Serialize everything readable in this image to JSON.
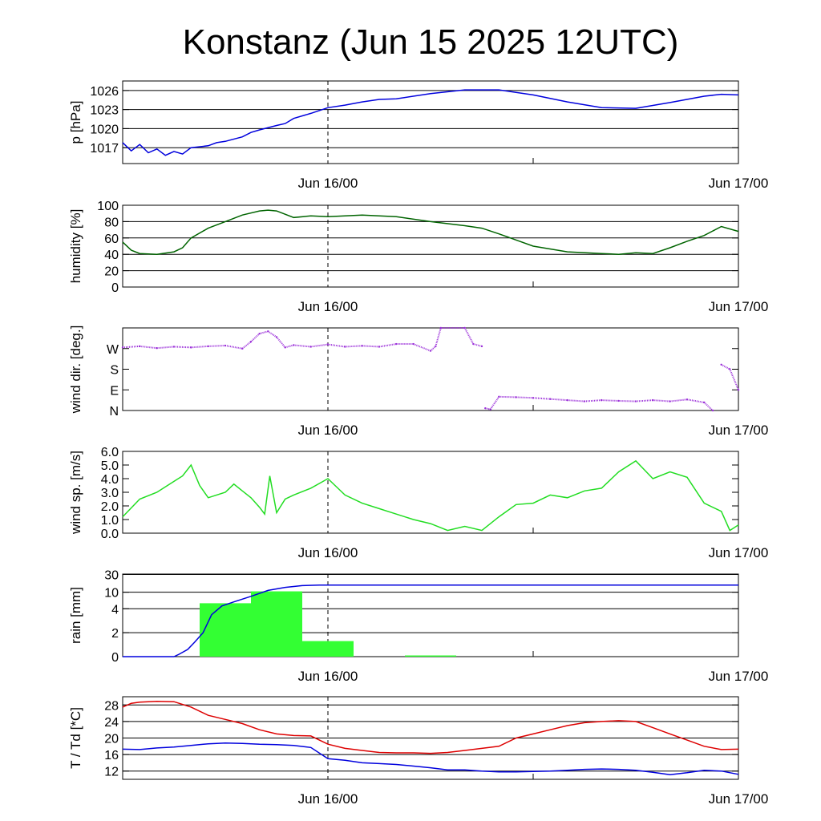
{
  "chart_data": {
    "type": "line",
    "title": "Konstanz (Jun 15 2025 12UTC)",
    "x_range": [
      "Jun 15 12:00",
      "Jun 17 00:00"
    ],
    "x_tick_labels": [
      "Jun 16/00",
      "Jun 17/00"
    ],
    "panels": [
      {
        "id": "pressure",
        "type": "line",
        "ylabel": "p [hPa]",
        "ylim": [
          1014.5,
          1027.5
        ],
        "yticks": [
          1017,
          1020,
          1023,
          1026
        ],
        "ytick_labels": [
          "1017",
          "1020",
          "1023",
          "1026"
        ],
        "grid": true,
        "series": [
          {
            "color": "#0000dd",
            "x": [
              0,
              0.5,
              1,
              1.5,
              2,
              2.5,
              3,
              3.5,
              4,
              5,
              5.5,
              6,
              7,
              7.5,
              8,
              9,
              9.5,
              10,
              11,
              12,
              13,
              14,
              15,
              16,
              18,
              20,
              22,
              24,
              26,
              28,
              30,
              32,
              34,
              35,
              36
            ],
            "y": [
              1017.8,
              1016.5,
              1017.5,
              1016.2,
              1016.8,
              1015.8,
              1016.4,
              1016.0,
              1017.0,
              1017.3,
              1017.8,
              1018.0,
              1018.7,
              1019.4,
              1019.8,
              1020.5,
              1020.8,
              1021.6,
              1022.4,
              1023.3,
              1023.7,
              1024.2,
              1024.6,
              1024.7,
              1025.5,
              1026.1,
              1026.1,
              1025.3,
              1024.2,
              1023.3,
              1023.2,
              1024.1,
              1025.1,
              1025.4,
              1025.3
            ]
          }
        ]
      },
      {
        "id": "humidity",
        "type": "line",
        "ylabel": "humidity [%]",
        "ylim": [
          0,
          100
        ],
        "yticks": [
          0,
          20,
          40,
          60,
          80,
          100
        ],
        "ytick_labels": [
          "0",
          "20",
          "40",
          "60",
          "80",
          "100"
        ],
        "grid": true,
        "series": [
          {
            "color": "#006400",
            "x": [
              0,
              0.5,
              1,
              2,
              3,
              3.5,
              4,
              5,
              6,
              7,
              8,
              8.5,
              9,
              10,
              11,
              12,
              13,
              14,
              16,
              18,
              20,
              21,
              22,
              24,
              26,
              28,
              29,
              30,
              31,
              32,
              33,
              34,
              35,
              36
            ],
            "y": [
              55,
              45,
              41,
              40,
              43,
              48,
              60,
              72,
              80,
              88,
              93,
              94,
              93,
              85,
              87,
              86,
              87,
              88,
              86,
              80,
              75,
              72,
              65,
              50,
              43,
              41,
              40,
              42,
              41,
              48,
              56,
              63,
              74,
              68
            ]
          }
        ]
      },
      {
        "id": "wind-direction",
        "type": "scatter",
        "ylabel": "wind dir. [deg.]",
        "ylim": [
          0,
          360
        ],
        "yticks": [
          0,
          90,
          180,
          270
        ],
        "ytick_labels": [
          "N",
          "E",
          "S",
          "W"
        ],
        "grid": false,
        "series": [
          {
            "color": "#9b30d9",
            "x": [
              0,
              1,
              2,
              3,
              4,
              5,
              6,
              7,
              7.5,
              8,
              8.5,
              9,
              9.5,
              10,
              11,
              12,
              13,
              14,
              15,
              16,
              17,
              18,
              18.3,
              18.6,
              20,
              20.5,
              21,
              21.2,
              21.5,
              22,
              23,
              24,
              25,
              26,
              27,
              28,
              29,
              30,
              31,
              32,
              33,
              34,
              34.5,
              35,
              35.5,
              36
            ],
            "y": [
              275,
              280,
              272,
              278,
              275,
              280,
              283,
              270,
              300,
              335,
              345,
              320,
              275,
              285,
              278,
              288,
              278,
              282,
              278,
              290,
              290,
              260,
              280,
              360,
              360,
              290,
              280,
              10,
              5,
              60,
              58,
              55,
              50,
              45,
              40,
              45,
              42,
              40,
              45,
              40,
              48,
              35,
              0,
              200,
              180,
              90
            ]
          }
        ]
      },
      {
        "id": "wind-speed",
        "type": "line",
        "ylabel": "wind sp. [m/s]",
        "ylim": [
          0,
          6
        ],
        "yticks": [
          0,
          1,
          2,
          3,
          4,
          5,
          6
        ],
        "ytick_labels": [
          "0.0",
          "1.0",
          "2.0",
          "3.0",
          "4.0",
          "5.0",
          "6.0"
        ],
        "grid": false,
        "series": [
          {
            "color": "#22dd22",
            "x": [
              0,
              1,
              2,
              3,
              3.5,
              4,
              4.5,
              5,
              6,
              6.5,
              7,
              7.5,
              8,
              8.3,
              8.6,
              9,
              9.5,
              10,
              11,
              12,
              13,
              14,
              15,
              16,
              17,
              18,
              19,
              20,
              21,
              22,
              23,
              24,
              25,
              26,
              27,
              28,
              29,
              30,
              31,
              32,
              33,
              34,
              35,
              35.5,
              36
            ],
            "y": [
              1.2,
              2.5,
              3.0,
              3.8,
              4.2,
              5.0,
              3.5,
              2.6,
              3.0,
              3.6,
              3.1,
              2.6,
              1.9,
              1.4,
              4.2,
              1.5,
              2.5,
              2.8,
              3.3,
              4.0,
              2.8,
              2.2,
              1.8,
              1.4,
              1.0,
              0.7,
              0.2,
              0.5,
              0.2,
              1.2,
              2.1,
              2.2,
              2.8,
              2.6,
              3.1,
              3.3,
              4.5,
              5.3,
              4.0,
              4.5,
              4.1,
              2.2,
              1.6,
              0.2,
              0.6
            ]
          }
        ]
      },
      {
        "id": "rain",
        "type": "bar",
        "ylabel": "rain [mm]",
        "ylim": [
          0,
          30
        ],
        "yticks": [
          0,
          2,
          4,
          10,
          30
        ],
        "ytick_labels": [
          "0",
          "2",
          "4",
          "10",
          "30"
        ],
        "grid": true,
        "bars": {
          "color": "#33ff33",
          "intervals": [
            [
              4.5,
              7.5
            ],
            [
              7.5,
              10.5
            ],
            [
              10.5,
              13.5
            ],
            [
              16.5,
              19.5
            ]
          ],
          "values": [
            6.0,
            11.0,
            1.3,
            0.1
          ]
        },
        "series": [
          {
            "color": "#0000dd",
            "x": [
              0,
              2,
              3,
              3.3,
              3.8,
              4.2,
              4.7,
              5.2,
              5.8,
              6.5,
              7.5,
              8.5,
              9.5,
              10.5,
              11.5,
              36
            ],
            "y": [
              0,
              0,
              0,
              0.2,
              0.6,
              1.2,
              2.0,
              3.5,
              5.0,
              6.5,
              8.5,
              12.0,
              15.5,
              17.5,
              18.0,
              18.0
            ]
          }
        ]
      },
      {
        "id": "temperature",
        "type": "line",
        "ylabel": "T / Td [*C]",
        "ylim": [
          10,
          30
        ],
        "yticks": [
          12,
          16,
          20,
          24,
          28
        ],
        "ytick_labels": [
          "12",
          "16",
          "20",
          "24",
          "28"
        ],
        "grid": true,
        "series": [
          {
            "color": "#dd0000",
            "x": [
              0,
              0.5,
              1,
              2,
              3,
              4,
              5,
              6,
              7,
              8,
              9,
              10,
              11,
              12,
              13,
              14,
              15,
              16,
              17,
              18,
              19,
              20,
              21,
              22,
              23,
              24,
              25,
              26,
              27,
              28,
              29,
              30,
              31,
              32,
              33,
              34,
              35,
              36
            ],
            "y": [
              27.5,
              28.4,
              28.7,
              28.9,
              28.8,
              27.5,
              25.5,
              24.5,
              23.5,
              22.0,
              21.0,
              20.6,
              20.5,
              18.5,
              17.5,
              17.0,
              16.5,
              16.4,
              16.4,
              16.3,
              16.5,
              17.0,
              17.5,
              18.0,
              20.0,
              21.0,
              22.0,
              23.0,
              23.7,
              24.0,
              24.2,
              24.0,
              22.5,
              21.0,
              19.5,
              18.0,
              17.2,
              17.3
            ]
          },
          {
            "color": "#0000dd",
            "x": [
              0,
              1,
              2,
              3,
              4,
              5,
              6,
              7,
              8,
              9,
              10,
              11,
              12,
              13,
              14,
              15,
              16,
              17,
              18,
              19,
              20,
              21,
              22,
              23,
              24,
              25,
              26,
              27,
              28,
              29,
              30,
              31,
              32,
              33,
              34,
              35,
              36
            ],
            "y": [
              17.3,
              17.2,
              17.6,
              17.8,
              18.2,
              18.6,
              18.8,
              18.7,
              18.5,
              18.4,
              18.2,
              17.7,
              15.0,
              14.6,
              14.0,
              13.8,
              13.6,
              13.2,
              12.8,
              12.3,
              12.3,
              12.0,
              11.8,
              11.8,
              11.9,
              12.0,
              12.2,
              12.4,
              12.5,
              12.4,
              12.2,
              11.7,
              11.1,
              11.6,
              12.2,
              12.0,
              11.2
            ]
          }
        ]
      }
    ]
  }
}
